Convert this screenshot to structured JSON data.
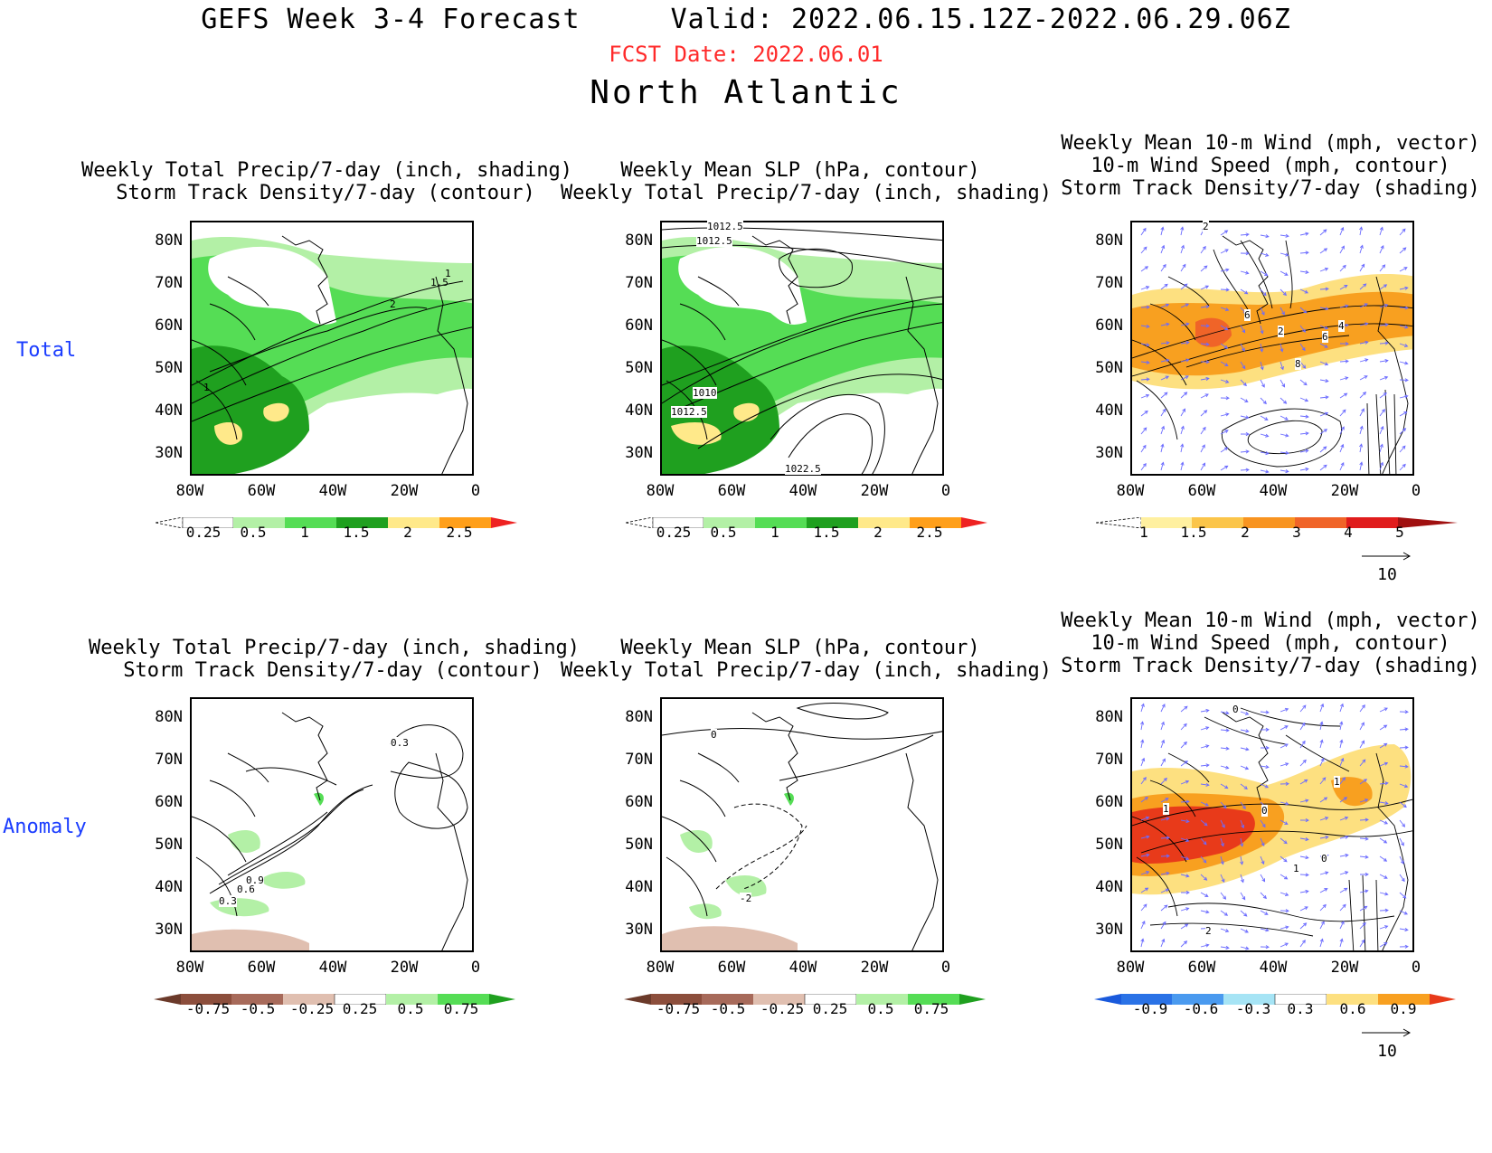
{
  "header": {
    "title": "GEFS Week 3-4 Forecast",
    "valid": "Valid: 2022.06.15.12Z-2022.06.29.06Z",
    "fcst_date": "FCST Date: 2022.06.01",
    "region": "North Atlantic"
  },
  "rows": {
    "total": "Total",
    "anomaly": "Anomaly"
  },
  "panel_titles": {
    "precip_storm": [
      "Weekly Total Precip/7-day (inch, shading)",
      "Storm Track Density/7-day (contour)"
    ],
    "slp_precip": [
      "Weekly Mean SLP (hPa, contour)",
      "Weekly Total Precip/7-day (inch, shading)"
    ],
    "wind_storm": [
      "Weekly Mean 10-m Wind (mph, vector)",
      "10-m Wind Speed (mph, contour)",
      "Storm Track Density/7-day (shading)"
    ]
  },
  "axes": {
    "lat_labels": [
      "80N",
      "70N",
      "60N",
      "50N",
      "40N",
      "30N"
    ],
    "lon_labels": [
      "80W",
      "60W",
      "40W",
      "20W",
      "0"
    ]
  },
  "colorbars": {
    "precip_total": {
      "labels": [
        "0.25",
        "0.5",
        "1",
        "1.5",
        "2",
        "2.5"
      ],
      "colors": [
        "#ffffff",
        "#b3f0a6",
        "#55dd55",
        "#1fa01f",
        "#ffe98a",
        "#ff9f1a",
        "#ee2222"
      ]
    },
    "storm_total": {
      "labels": [
        "1",
        "1.5",
        "2",
        "3",
        "4",
        "5"
      ],
      "colors": [
        "#ffffff",
        "#fff0a0",
        "#fbc54a",
        "#f89420",
        "#f06428",
        "#e01c1c",
        "#a01010"
      ]
    },
    "precip_anom": {
      "labels": [
        "-0.75",
        "-0.5",
        "-0.25",
        "0.25",
        "0.5",
        "0.75"
      ],
      "colors": [
        "#6b3a2a",
        "#a76a5a",
        "#e0bfb0",
        "#ffffff",
        "#b3f0a6",
        "#55dd55",
        "#1fa01f"
      ]
    },
    "storm_anom": {
      "labels": [
        "-0.9",
        "-0.6",
        "-0.3",
        "0.3",
        "0.6",
        "0.9"
      ],
      "colors": [
        "#1a5adc",
        "#4a9aef",
        "#a6e4f5",
        "#ffffff",
        "#fde080",
        "#f8a020",
        "#e83a1a"
      ]
    }
  },
  "vector_ref": "10",
  "contour_labels": {
    "p1": [
      "1",
      "1.5",
      "2",
      "1"
    ],
    "p2": [
      "1012.5",
      "1012.5",
      "1010",
      "1012.5",
      "1022.5"
    ],
    "p3": [
      "2",
      "4",
      "6",
      "8",
      "6",
      "2"
    ],
    "p4": [
      "0.3",
      "0.9",
      "0.6",
      "0.3"
    ],
    "p5": [
      "0",
      "-2"
    ],
    "p6": [
      "0",
      "0",
      "1",
      "1",
      "0",
      "1",
      "2"
    ]
  }
}
